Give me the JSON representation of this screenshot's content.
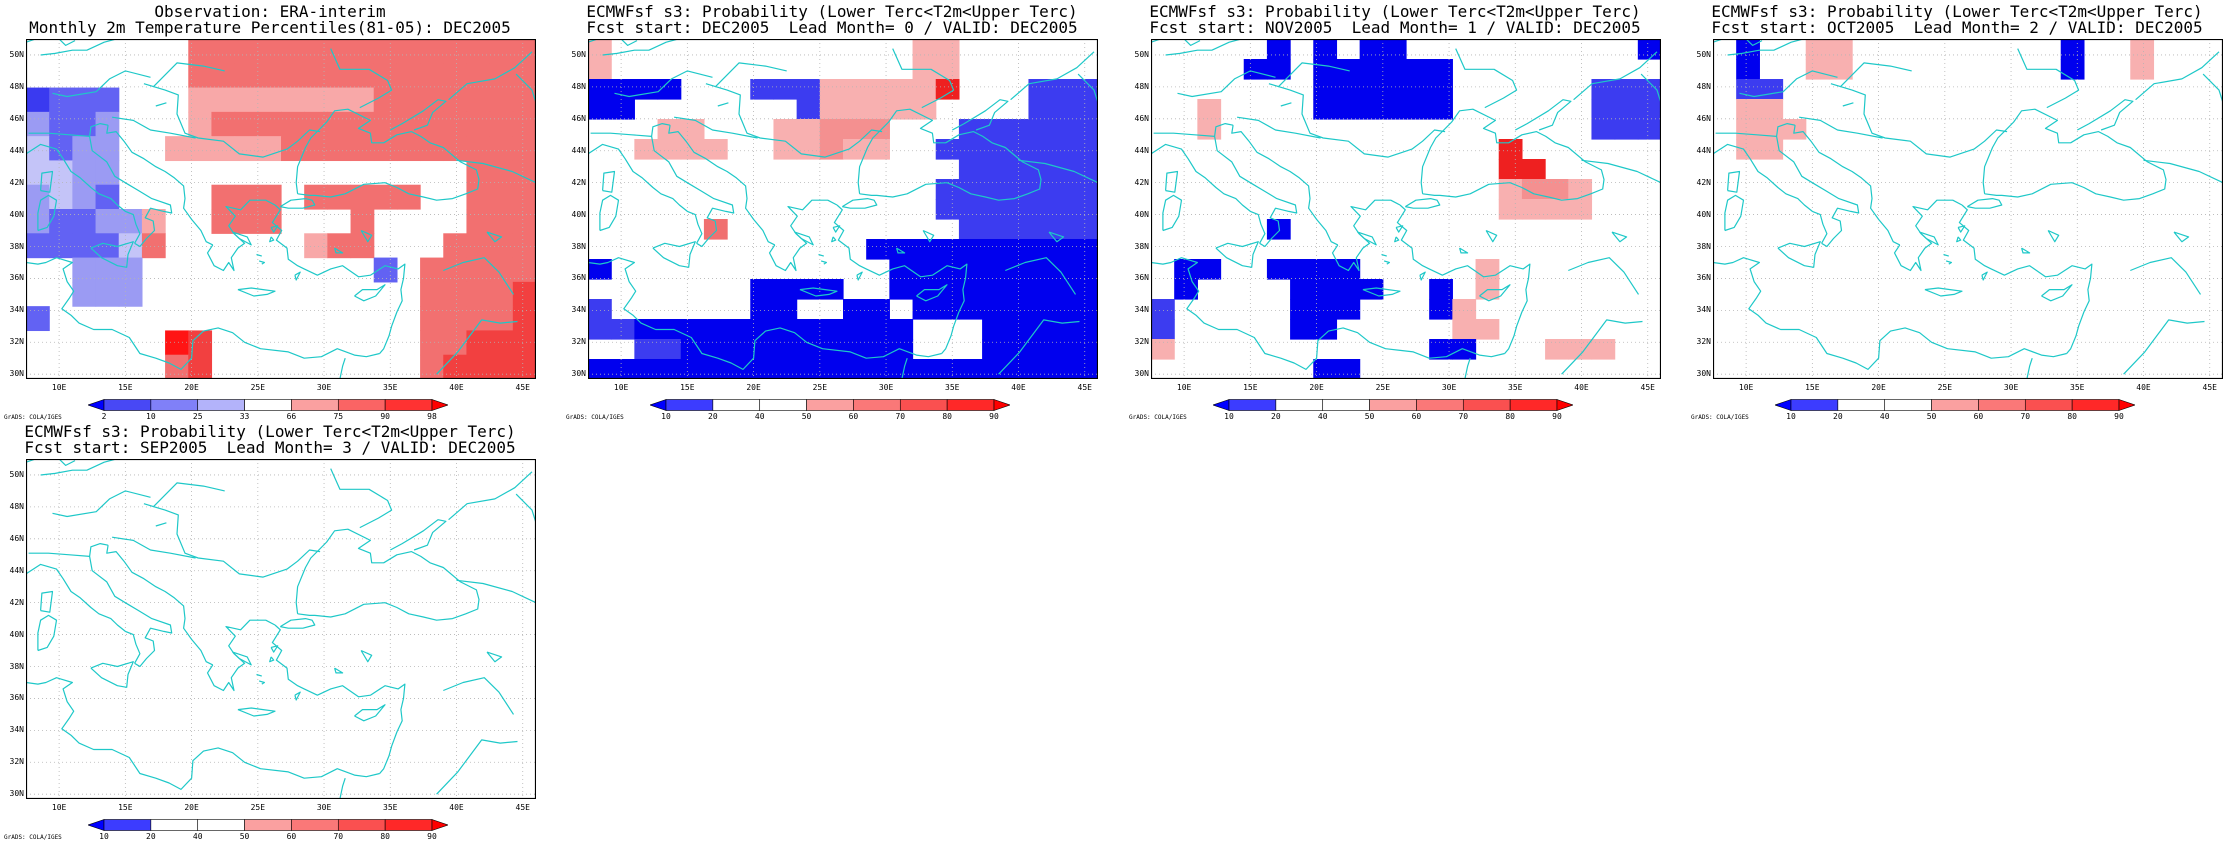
{
  "colors": {
    "coast": "#1ec8c8",
    "frame": "#000000",
    "grid": "#b4b4b4"
  },
  "lat_labels": [
    "50N",
    "48N",
    "46N",
    "44N",
    "42N",
    "40N",
    "38N",
    "36N",
    "34N",
    "32N",
    "30N"
  ],
  "lon_labels": [
    "10E",
    "15E",
    "20E",
    "25E",
    "30E",
    "35E",
    "40E",
    "45E"
  ],
  "grads_label": "GrADS: COLA/IGES",
  "panels": [
    {
      "title1": "Observation: ERA-interim",
      "title2": "Monthly 2m Temperature Percentiles(81-05): DEC2005",
      "cbar": {
        "labels": [
          "2",
          "10",
          "25",
          "33",
          "66",
          "75",
          "90",
          "98"
        ],
        "colors": [
          "#0000ff",
          "#4848f5",
          "#8080f8",
          "#b3b3fa",
          "#ffffff",
          "#faa0a0",
          "#fa6464",
          "#ff3232",
          "#ff0000"
        ]
      },
      "palette": {
        "0": "#ffffff",
        "1": "#3a3af0",
        "2": "#6262f3",
        "3": "#9b9bf3",
        "4": "#c4c4f8",
        "5": "#f8a8a8",
        "6": "#f27070",
        "7": "#f24040",
        "8": "#ff1414"
      },
      "grid": [
        "0000000666666666666666",
        "0000000666666666666666",
        "1222000555555556666666",
        "3223000566666666666666",
        "4233005555566666666666",
        "4433000000000000000666",
        "3432000066606666600666",
        "3223350066600060000666",
        "2222460000005660006666",
        "0033300000000002066666",
        "0033300000000000066667",
        "2000000000000000066667",
        "0000008700000000066777",
        "0000006700000000067777"
      ]
    },
    {
      "title1": "ECMWFsf s3: Probability (Lower Terc<T2m<Upper Terc)",
      "title2": "Fcst start: DEC2005  Lead Month= 0 / VALID: DEC2005",
      "cbar": {
        "labels": [
          "10",
          "20",
          "40",
          "50",
          "60",
          "70",
          "80",
          "90"
        ],
        "colors": [
          "#0000ff",
          "#3c3cff",
          "#ffffff",
          "#ffffff",
          "#faa0a0",
          "#fa7878",
          "#fa5050",
          "#ff2828",
          "#ff0000"
        ]
      },
      "palette": {
        "0": "#ffffff",
        "1": "#0000ee",
        "2": "#3c3cf0",
        "3": "#f8b0b0",
        "4": "#f49090",
        "5": "#f07070",
        "6": "#ee2020"
      },
      "grid": [
        "3000000000000033000000",
        "3000000000000033000000",
        "1111000222333336000222",
        "1100000002333330000222",
        "0003300033444000222222",
        "0033330033433002222222",
        "0000000000000000222222",
        "0000000000000002222222",
        "0000000000000002222222",
        "0000050000000000222222",
        "0000000000001111111111",
        "1000000000000111111111",
        "0000000111100111111111",
        "2000000110011011111111",
        "2211111111111100011111",
        "0022111111111100011111",
        "1111111111111111111111"
      ]
    },
    {
      "title1": "ECMWFsf s3: Probability (Lower Terc<T2m<Upper Terc)",
      "title2": "Fcst start: NOV2005  Lead Month= 1 / VALID: DEC2005",
      "cbar": {
        "labels": [
          "10",
          "20",
          "40",
          "50",
          "60",
          "70",
          "80",
          "90"
        ],
        "colors": [
          "#0000ff",
          "#3c3cff",
          "#ffffff",
          "#ffffff",
          "#faa0a0",
          "#fa7878",
          "#fa5050",
          "#ff2828",
          "#ff0000"
        ]
      },
      "palette": {
        "0": "#ffffff",
        "1": "#0000ee",
        "2": "#3c3cf0",
        "3": "#f8b0b0",
        "4": "#f49090",
        "5": "#f07070",
        "6": "#ee2020"
      },
      "grid": [
        "0000010101100000000001",
        "0000110111111000000000",
        "0000000111111000000222",
        "0030000111111000000222",
        "0030000000000000000222",
        "0000000000000006000000",
        "0000000000000006600000",
        "0000000000000003443000",
        "0000000000000003333000",
        "0000010000000000000000",
        "0000000000000000000000",
        "0110011110000030000000",
        "0100001111001030000000",
        "2000001110001300000000",
        "2000001100000330000000",
        "3000000000001100033300",
        "0000000110000000000000"
      ]
    },
    {
      "title1": "ECMWFsf s3: Probability (Lower Terc<T2m<Upper Terc)",
      "title2": "Fcst start: OCT2005  Lead Month= 2 / VALID: DEC2005",
      "cbar": {
        "labels": [
          "10",
          "20",
          "40",
          "50",
          "60",
          "70",
          "80",
          "90"
        ],
        "colors": [
          "#0000ff",
          "#3c3cff",
          "#ffffff",
          "#ffffff",
          "#faa0a0",
          "#fa7878",
          "#fa5050",
          "#ff2828",
          "#ff0000"
        ]
      },
      "palette": {
        "0": "#ffffff",
        "1": "#0000ee",
        "2": "#3c3cf0",
        "3": "#f8b0b0",
        "4": "#f49090",
        "5": "#f07070",
        "6": "#ee2020"
      },
      "grid": [
        "0100330000000001003000",
        "0100330000000001003000",
        "0220000000000000000000",
        "0330000000000000000000",
        "0333000000000000000000",
        "0330000000000000000000",
        "0000000000000000000000",
        "0000000000000000000000",
        "0000000000000000000000",
        "0000000000000000000000",
        "0000000000000000000000",
        "0000000000000000000000",
        "0000000000000000000000",
        "0000000000000000000000",
        "0000000000000000000000",
        "0000000000000000000000",
        "0000000000000000000000"
      ]
    },
    {
      "title1": "ECMWFsf s3: Probability (Lower Terc<T2m<Upper Terc)",
      "title2": "Fcst start: SEP2005  Lead Month= 3 / VALID: DEC2005",
      "cbar": {
        "labels": [
          "10",
          "20",
          "40",
          "50",
          "60",
          "70",
          "80",
          "90"
        ],
        "colors": [
          "#0000ff",
          "#3c3cff",
          "#ffffff",
          "#ffffff",
          "#faa0a0",
          "#fa7878",
          "#fa5050",
          "#ff2828",
          "#ff0000"
        ]
      },
      "palette": {
        "0": "#ffffff",
        "1": "#0000ee",
        "2": "#3c3cf0",
        "3": "#f8b0b0",
        "4": "#f49090",
        "5": "#f07070",
        "6": "#ee2020"
      },
      "grid": [
        "0000000000000000000000",
        "0000000000000000000000",
        "0000000000000000000000",
        "0000000000000000000000",
        "0000000000000000000000",
        "0000000000000000000000",
        "0000000000000000000000",
        "0000000000000000000000",
        "0000000000000000000000",
        "0000000000000000000000",
        "0000000000000000000000",
        "0000000000000000000000",
        "0000000000000000000000",
        "0000000000000000000000",
        "0000000000000000000000",
        "0000000000000000000000",
        "0000000000000000000000"
      ]
    }
  ]
}
